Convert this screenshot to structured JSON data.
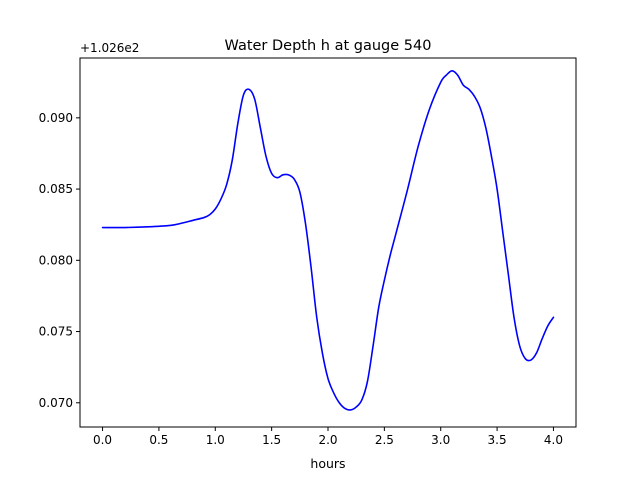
{
  "chart_data": {
    "type": "line",
    "title": "Water Depth h at gauge 540",
    "xlabel": "hours",
    "ylabel": "",
    "offset_label": "+1.026e2",
    "xlim": [
      -0.2,
      4.2
    ],
    "ylim": [
      0.0683,
      0.0942
    ],
    "xticks": [
      0.0,
      0.5,
      1.0,
      1.5,
      2.0,
      2.5,
      3.0,
      3.5,
      4.0
    ],
    "xtick_labels": [
      "0.0",
      "0.5",
      "1.0",
      "1.5",
      "2.0",
      "2.5",
      "3.0",
      "3.5",
      "4.0"
    ],
    "yticks": [
      0.07,
      0.075,
      0.08,
      0.085,
      0.09
    ],
    "ytick_labels": [
      "0.070",
      "0.075",
      "0.080",
      "0.085",
      "0.090"
    ],
    "grid": false,
    "line_color": "#0000ff",
    "series": [
      {
        "name": "",
        "x": [
          0.0,
          0.2,
          0.4,
          0.6,
          0.7,
          0.8,
          0.9,
          0.95,
          1.0,
          1.05,
          1.1,
          1.15,
          1.2,
          1.25,
          1.3,
          1.35,
          1.4,
          1.45,
          1.5,
          1.55,
          1.6,
          1.65,
          1.7,
          1.75,
          1.8,
          1.85,
          1.9,
          1.95,
          2.0,
          2.05,
          2.1,
          2.15,
          2.2,
          2.25,
          2.3,
          2.35,
          2.4,
          2.45,
          2.5,
          2.55,
          2.6,
          2.7,
          2.8,
          2.9,
          3.0,
          3.05,
          3.1,
          3.15,
          3.2,
          3.25,
          3.3,
          3.35,
          3.4,
          3.45,
          3.5,
          3.55,
          3.6,
          3.65,
          3.7,
          3.75,
          3.8,
          3.85,
          3.9,
          3.95,
          4.0
        ],
        "y": [
          0.0823,
          0.0823,
          0.08235,
          0.08245,
          0.0826,
          0.0828,
          0.083,
          0.0832,
          0.0836,
          0.0843,
          0.0853,
          0.087,
          0.0896,
          0.0916,
          0.092,
          0.0913,
          0.0893,
          0.0873,
          0.0861,
          0.0858,
          0.086,
          0.086,
          0.0857,
          0.0848,
          0.0826,
          0.0795,
          0.076,
          0.0735,
          0.0717,
          0.0707,
          0.07,
          0.0696,
          0.0695,
          0.0697,
          0.0702,
          0.0715,
          0.074,
          0.0767,
          0.0786,
          0.0803,
          0.0818,
          0.0848,
          0.088,
          0.0906,
          0.0925,
          0.093,
          0.0933,
          0.093,
          0.0923,
          0.092,
          0.0915,
          0.0907,
          0.0893,
          0.0873,
          0.085,
          0.082,
          0.079,
          0.076,
          0.074,
          0.0731,
          0.073,
          0.0735,
          0.0745,
          0.0754,
          0.076
        ]
      }
    ]
  }
}
